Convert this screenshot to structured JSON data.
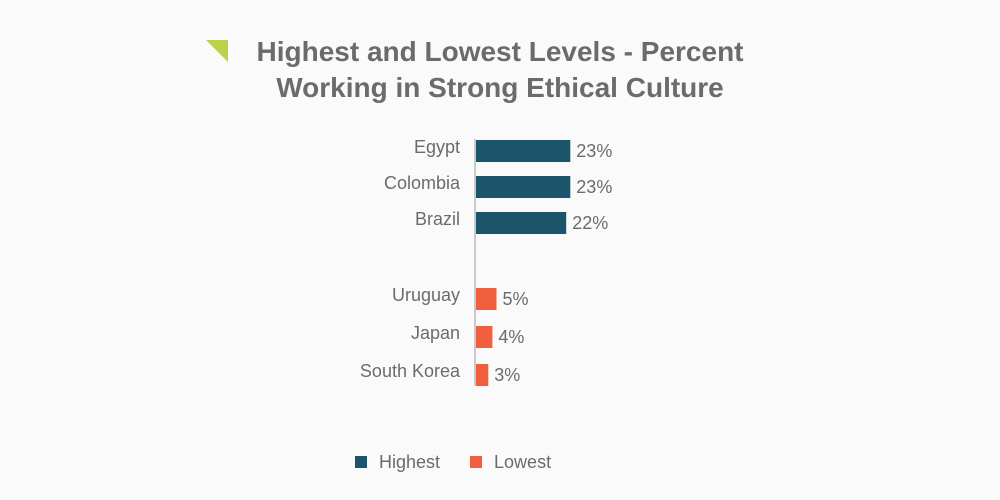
{
  "colors": {
    "background": "#fafafa",
    "text": "#6b6b6b",
    "accent": "#b9d24a",
    "highest": "#1b546b",
    "lowest": "#f0603f"
  },
  "chart_data": {
    "type": "bar",
    "orientation": "horizontal",
    "title": "Highest and Lowest Levels - Percent Working in Strong Ethical Culture",
    "title_lines": [
      "Highest and Lowest Levels - Percent",
      "Working in Strong Ethical Culture"
    ],
    "grid": false,
    "legend_placement": "bottom",
    "series": [
      {
        "name": "Highest",
        "color": "#1b546b",
        "categories": [
          "Egypt",
          "Colombia",
          "Brazil"
        ],
        "values": [
          23,
          23,
          22
        ],
        "labels": [
          "23%",
          "23%",
          "22%"
        ]
      },
      {
        "name": "Lowest",
        "color": "#f0603f",
        "categories": [
          "Uruguay",
          "Japan",
          "South Korea"
        ],
        "values": [
          5,
          4,
          3
        ],
        "labels": [
          "5%",
          "4%",
          "3%"
        ]
      }
    ]
  }
}
